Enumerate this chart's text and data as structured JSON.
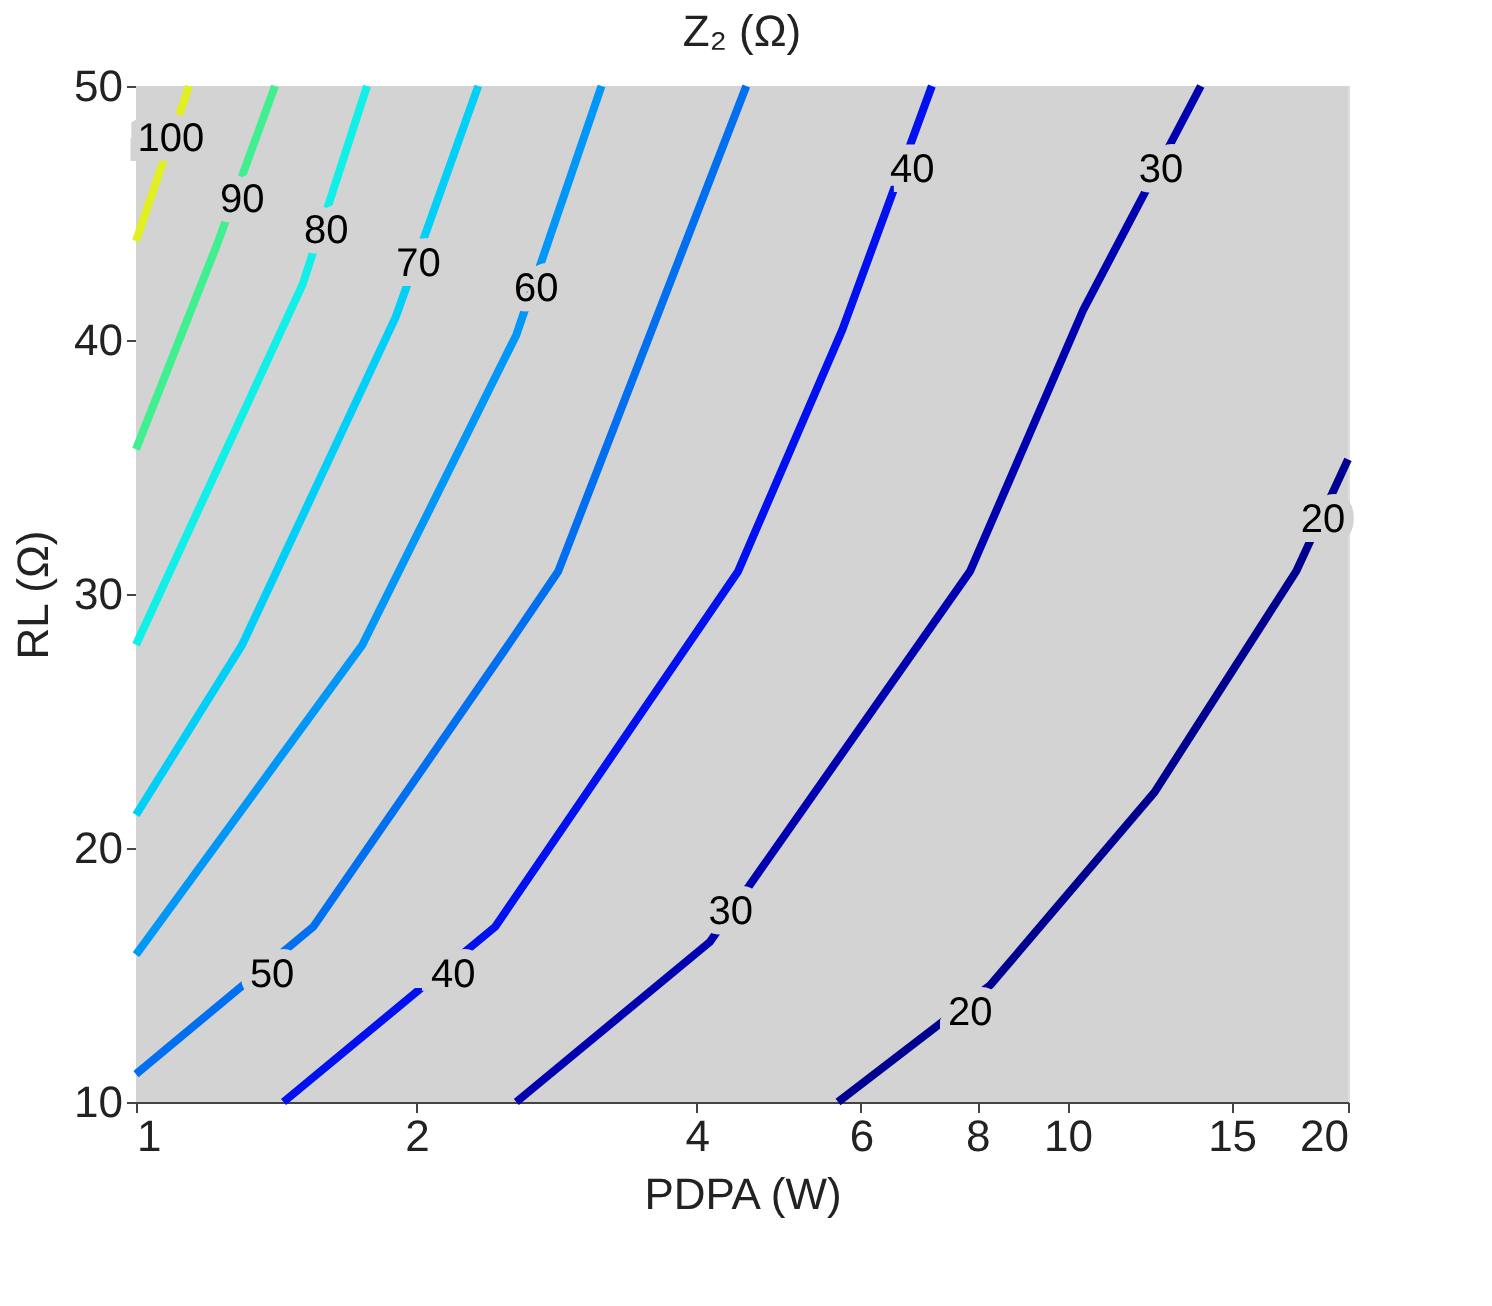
{
  "chart_data": {
    "type": "line",
    "title": "Z₂ (Ω)",
    "xlabel": "PDPA (W)",
    "ylabel": "RL (Ω)",
    "log": "x",
    "xlim": [
      1,
      20
    ],
    "xticks": [
      1,
      2,
      4,
      6,
      8,
      10,
      15,
      20
    ],
    "ylim": [
      10,
      50
    ],
    "yticks": [
      10,
      20,
      30,
      40,
      50
    ],
    "line_style": "solid",
    "marker": "none",
    "bands": [
      {
        "axis": "x",
        "from": 1,
        "to": 20,
        "color": "#d3d3d3"
      }
    ],
    "series": [
      {
        "color": "#e0f020",
        "x": [
          1,
          1.14
        ],
        "values": [
          43.9,
          50
        ]
      },
      {
        "color": "#40f090",
        "x": [
          1,
          1.22,
          1.41
        ],
        "values": [
          35.7,
          43.7,
          50
        ]
      },
      {
        "color": "#10f0e8",
        "x": [
          1,
          1.51,
          1.77
        ],
        "values": [
          28.0,
          42.2,
          50
        ]
      },
      {
        "color": "#00d0f8",
        "x": [
          1,
          1.3,
          1.9,
          2.33
        ],
        "values": [
          21.3,
          28.0,
          40.9,
          50
        ]
      },
      {
        "color": "#0098f8",
        "x": [
          1,
          1.75,
          2.56,
          3.16
        ],
        "values": [
          15.8,
          28.0,
          40.2,
          50
        ]
      },
      {
        "color": "#0070f0",
        "x": [
          1,
          1.55,
          2.51,
          2.84,
          4.52
        ],
        "values": [
          11.1,
          16.9,
          28.0,
          30.9,
          50
        ]
      },
      {
        "color": "#0010f0",
        "x": [
          1.44,
          2.43,
          4.43,
          5.73,
          7.15
        ],
        "values": [
          10,
          16.9,
          30.9,
          40.4,
          50
        ]
      },
      {
        "color": "#0000b0",
        "x": [
          2.56,
          4.13,
          7.86,
          10.4,
          13.9
        ],
        "values": [
          10,
          16.3,
          30.9,
          41.2,
          50
        ]
      },
      {
        "color": "#000090",
        "x": [
          5.67,
          8.26,
          12.4,
          17.6,
          20
        ],
        "values": [
          10,
          14.6,
          22.2,
          30.9,
          35.3
        ]
      }
    ],
    "annotations": [
      {
        "text": "100",
        "x": 1.09,
        "y": 47.9
      },
      {
        "text": "90",
        "x": 1.3,
        "y": 45.5
      },
      {
        "text": "80",
        "x": 1.6,
        "y": 44.3
      },
      {
        "text": "70",
        "x": 2.01,
        "y": 43.0
      },
      {
        "text": "60",
        "x": 2.69,
        "y": 42.0
      },
      {
        "text": "50",
        "x": 1.4,
        "y": 15.0
      },
      {
        "text": "40",
        "x": 2.19,
        "y": 15.0
      },
      {
        "text": "40",
        "x": 6.81,
        "y": 46.7
      },
      {
        "text": "30",
        "x": 4.35,
        "y": 17.5
      },
      {
        "text": "30",
        "x": 12.6,
        "y": 46.7
      },
      {
        "text": "20",
        "x": 7.86,
        "y": 13.5
      },
      {
        "text": "20",
        "x": 18.8,
        "y": 32.9
      }
    ]
  }
}
